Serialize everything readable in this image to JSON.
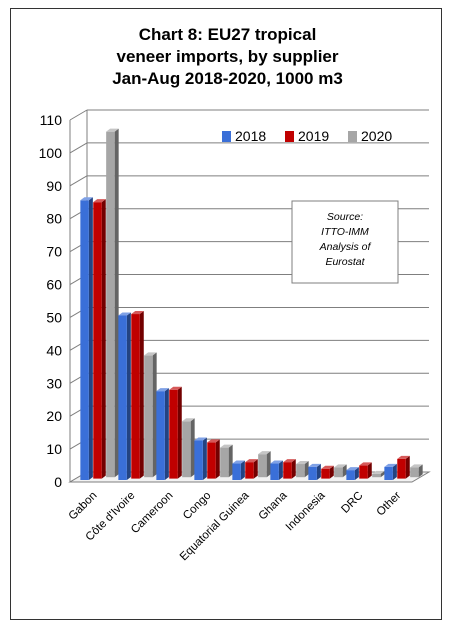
{
  "chart_data": {
    "type": "bar",
    "title_lines": [
      "Chart 8: EU27 tropical",
      "veneer imports, by supplier",
      "Jan-Aug 2018-2020, 1000 m3"
    ],
    "categories": [
      "Gabon",
      "Côte d'Ivoire",
      "Cameroon",
      "Congo",
      "Equatorial Guinea",
      "Ghana",
      "Indonesia",
      "DRC",
      "Other"
    ],
    "series": [
      {
        "name": "2018",
        "color": "#3a6fd8",
        "values": [
          85,
          50,
          27,
          12,
          5,
          5,
          4,
          3,
          4
        ]
      },
      {
        "name": "2019",
        "color": "#c00000",
        "values": [
          84,
          50,
          27,
          11,
          5,
          5,
          3,
          4,
          6
        ]
      },
      {
        "name": "2020",
        "color": "#a6a6a6",
        "values": [
          105,
          37,
          17,
          9,
          7,
          4,
          3,
          1,
          3
        ]
      }
    ],
    "y_ticks": [
      "0",
      "10",
      "20",
      "30",
      "40",
      "50",
      "60",
      "70",
      "80",
      "90",
      "100",
      "110"
    ],
    "ylim": [
      0,
      110
    ],
    "grid": true,
    "legend_position": "top-right",
    "annotation_lines": [
      "Source:",
      "ITTO-IMM",
      "Analysis of",
      "Eurostat"
    ],
    "style": "3d-clustered-column"
  }
}
